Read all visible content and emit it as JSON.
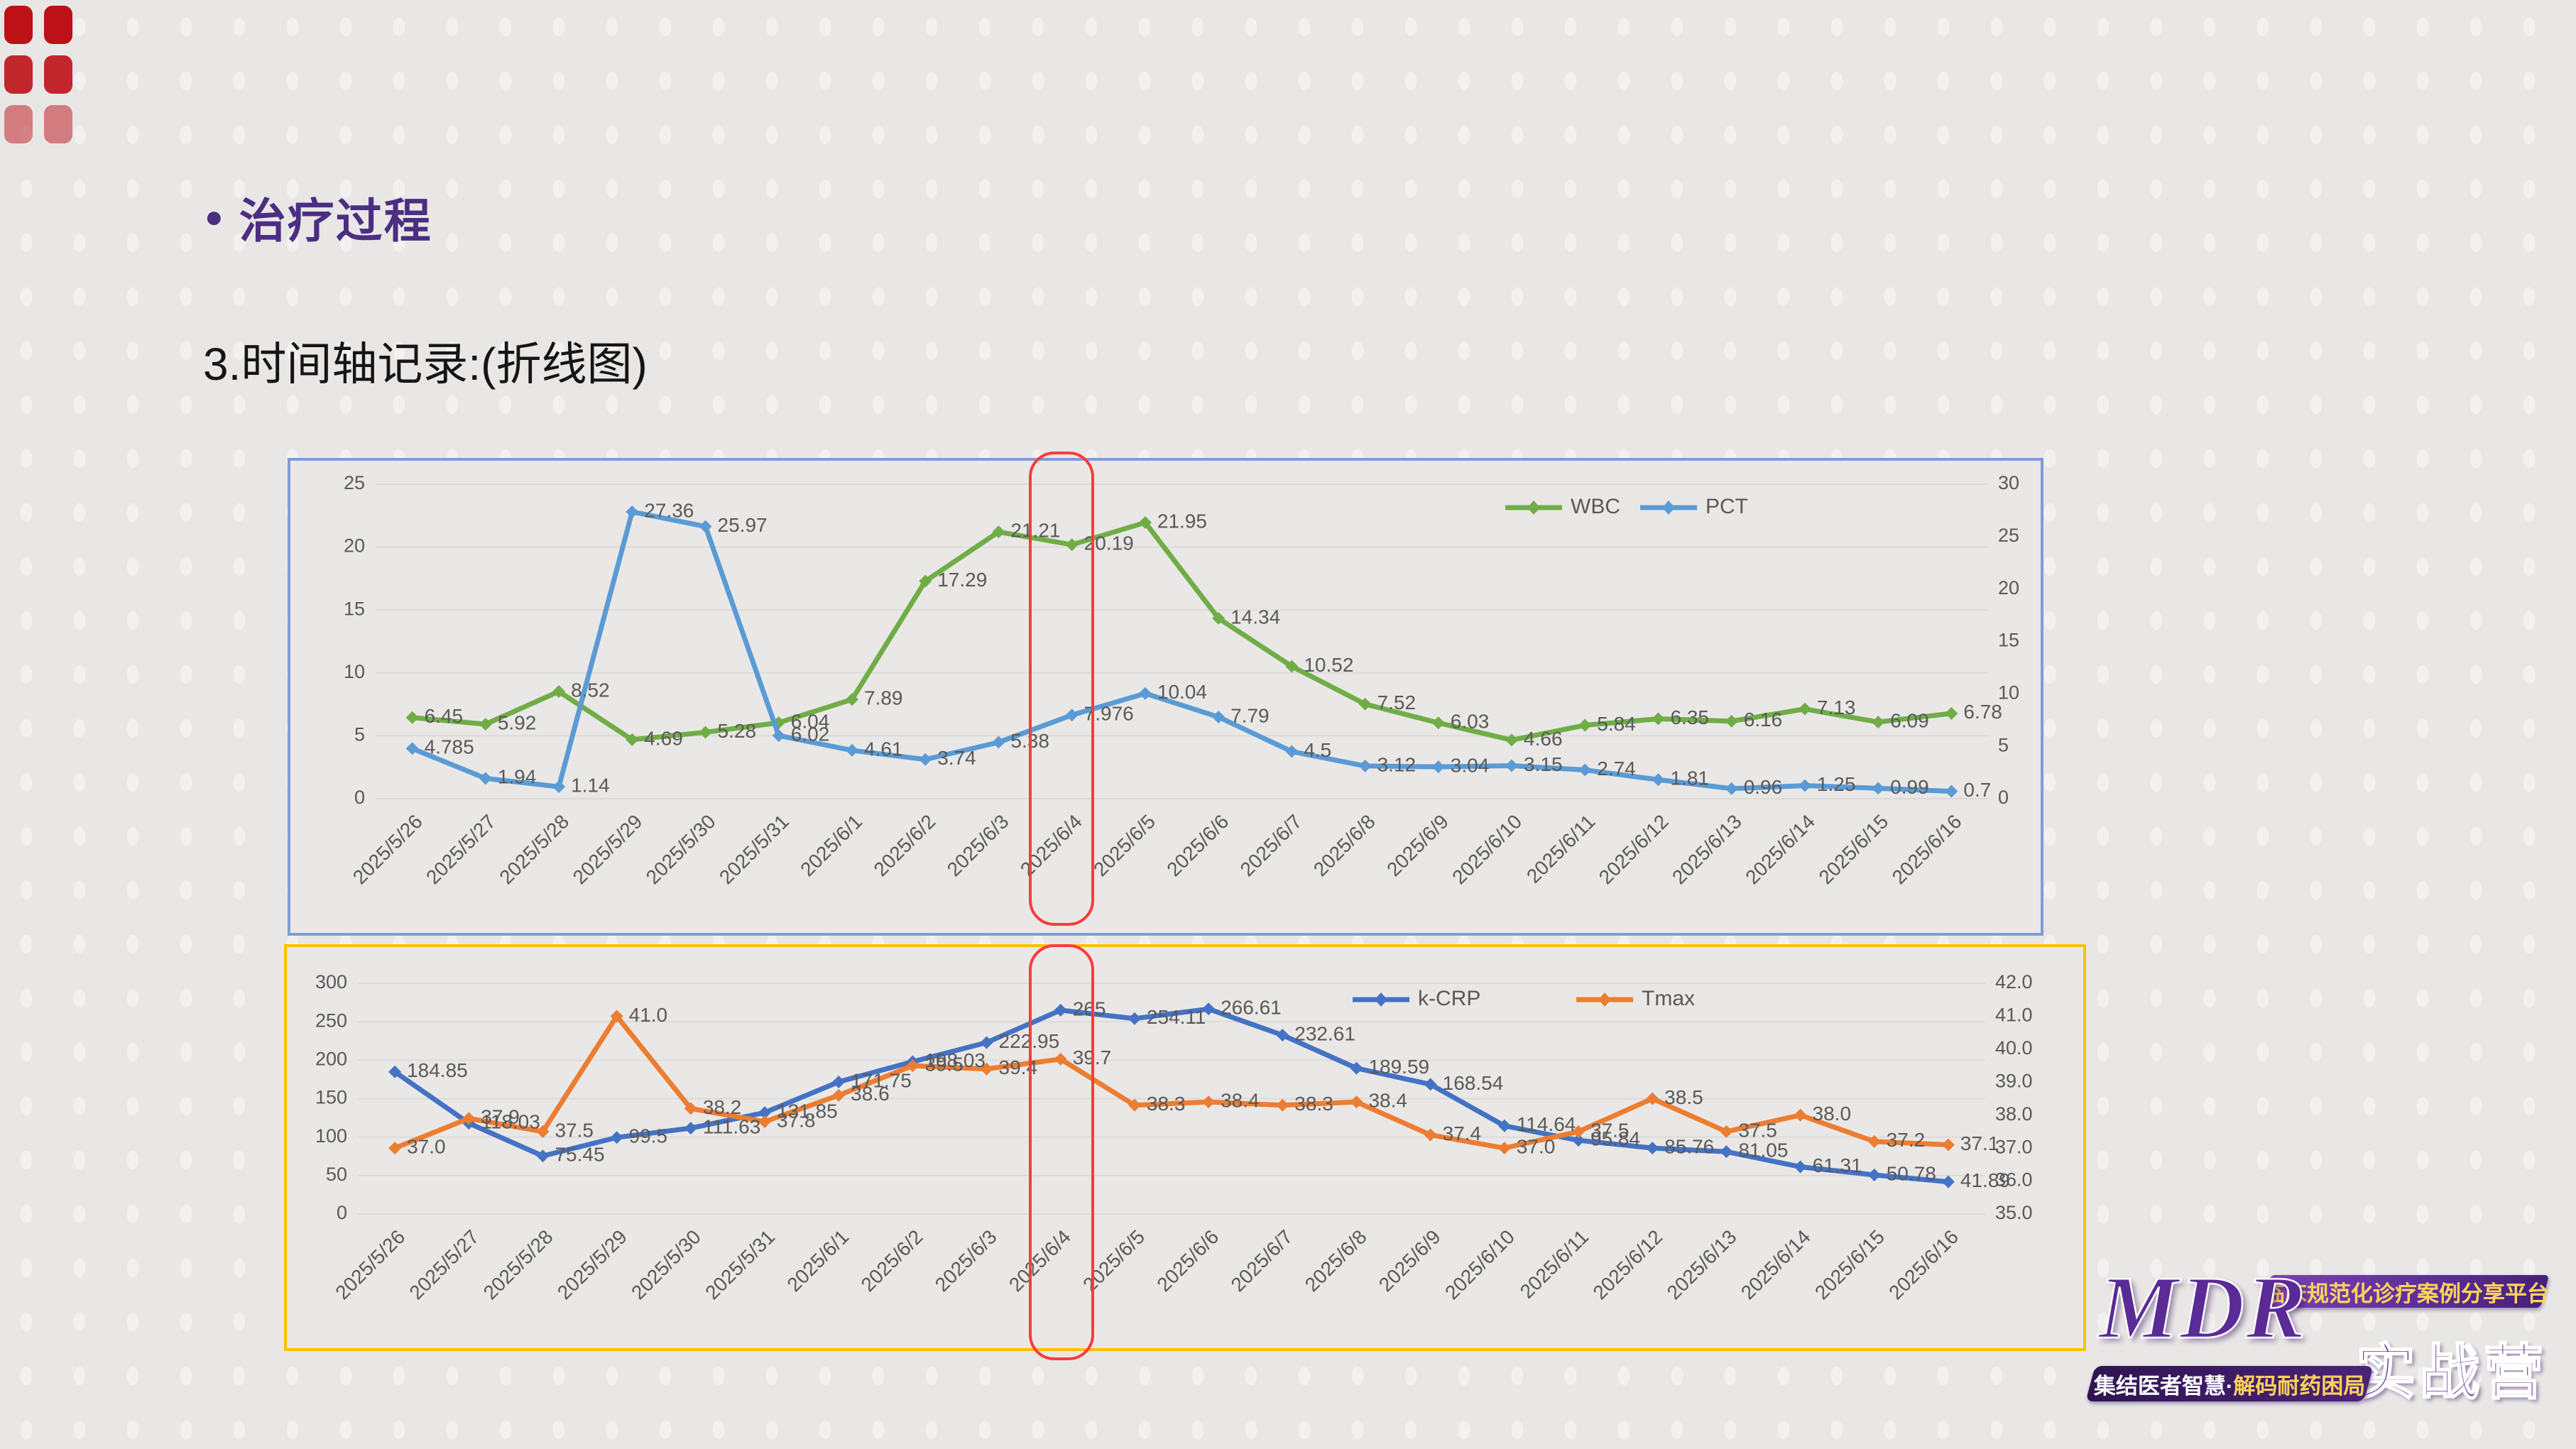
{
  "slide": {
    "bullet": "●",
    "title": "治疗过程",
    "subtitle": "3.时间轴记录:(折线图)"
  },
  "colors": {
    "title": "#4b2e82",
    "top_chart_border": "#7f9cd6",
    "bottom_chart_border": "#ffc000",
    "highlight": "#fb3b3b",
    "axis_text": "#595959",
    "gridline": "#dcdad9",
    "wbc": "#70ad47",
    "pct": "#5b9bd5",
    "kcrp": "#4472c4",
    "tmax": "#ed7d31"
  },
  "chart_data": [
    {
      "type": "line",
      "title": "",
      "categories": [
        "2025/5/26",
        "2025/5/27",
        "2025/5/28",
        "2025/5/29",
        "2025/5/30",
        "2025/5/31",
        "2025/6/1",
        "2025/6/2",
        "2025/6/3",
        "2025/6/4",
        "2025/6/5",
        "2025/6/6",
        "2025/6/7",
        "2025/6/8",
        "2025/6/9",
        "2025/6/10",
        "2025/6/11",
        "2025/6/12",
        "2025/6/13",
        "2025/6/14",
        "2025/6/15",
        "2025/6/16"
      ],
      "series": [
        {
          "name": "WBC",
          "color_key": "wbc",
          "axis": "left",
          "values": [
            "6.45",
            "5.92",
            "8.52",
            "4.69",
            "5.28",
            "6.04",
            "7.89",
            "17.29",
            "21.21",
            "20.19",
            "21.95",
            "14.34",
            "10.52",
            "7.52",
            "6.03",
            "4.66",
            "5.84",
            "6.35",
            "6.16",
            "7.13",
            "6.09",
            "6.78"
          ]
        },
        {
          "name": "PCT",
          "color_key": "pct",
          "axis": "right",
          "values": [
            "4.785",
            "1.94",
            "1.14",
            "27.36",
            "25.97",
            "6.02",
            "4.61",
            "3.74",
            "5.38",
            "7.976",
            "10.04",
            "7.79",
            "4.5",
            "3.12",
            "3.04",
            "3.15",
            "2.74",
            "1.81",
            "0.96",
            "1.25",
            "0.99",
            "0.7"
          ]
        }
      ],
      "left_axis": {
        "min": 0,
        "max": 25,
        "ticks": [
          "25",
          "20",
          "15",
          "10",
          "5",
          "0"
        ]
      },
      "right_axis": {
        "min": 0,
        "max": 30,
        "ticks": [
          "30",
          "25",
          "20",
          "15",
          "10",
          "5",
          "0"
        ]
      },
      "grid": true,
      "legend_position": "top-right",
      "highlight_category": "2025/6/4"
    },
    {
      "type": "line",
      "title": "",
      "categories": [
        "2025/5/26",
        "2025/5/27",
        "2025/5/28",
        "2025/5/29",
        "2025/5/30",
        "2025/5/31",
        "2025/6/1",
        "2025/6/2",
        "2025/6/3",
        "2025/6/4",
        "2025/6/5",
        "2025/6/6",
        "2025/6/7",
        "2025/6/8",
        "2025/6/9",
        "2025/6/10",
        "2025/6/11",
        "2025/6/12",
        "2025/6/13",
        "2025/6/14",
        "2025/6/15",
        "2025/6/16"
      ],
      "series": [
        {
          "name": "k-CRP",
          "color_key": "kcrp",
          "axis": "left",
          "values": [
            "184.85",
            "118.03",
            "75.45",
            "99.5",
            "111.63",
            "131.85",
            "171.75",
            "198.03",
            "222.95",
            "265",
            "254.11",
            "266.61",
            "232.61",
            "189.59",
            "168.54",
            "114.64",
            "95.84",
            "85.76",
            "81.05",
            "61.31",
            "50.78",
            "41.89"
          ]
        },
        {
          "name": "Tmax",
          "color_key": "tmax",
          "axis": "right",
          "values": [
            "37.0",
            "37.9",
            "37.5",
            "41.0",
            "38.2",
            "37.8",
            "38.6",
            "39.5",
            "39.4",
            "39.7",
            "38.3",
            "38.4",
            "38.3",
            "38.4",
            "37.4",
            "37.0",
            "37.5",
            "38.5",
            "37.5",
            "38.0",
            "37.2",
            "37.1"
          ]
        }
      ],
      "left_axis": {
        "min": 0,
        "max": 300,
        "ticks": [
          "300",
          "250",
          "200",
          "150",
          "100",
          "50",
          "0"
        ]
      },
      "right_axis": {
        "min": 35,
        "max": 42,
        "ticks": [
          "42.0",
          "41.0",
          "40.0",
          "39.0",
          "38.0",
          "37.0",
          "36.0",
          "35.0"
        ]
      },
      "grid": true,
      "legend_position": "top-right",
      "highlight_category": "2025/6/4"
    }
  ],
  "logo": {
    "mdr": "MDR",
    "camp": "实战营",
    "ribbon": "临床规范化诊疗案例分享平台",
    "band_left": "集结医者智慧",
    "band_sep": "·",
    "band_right": "解码耐药困局"
  }
}
